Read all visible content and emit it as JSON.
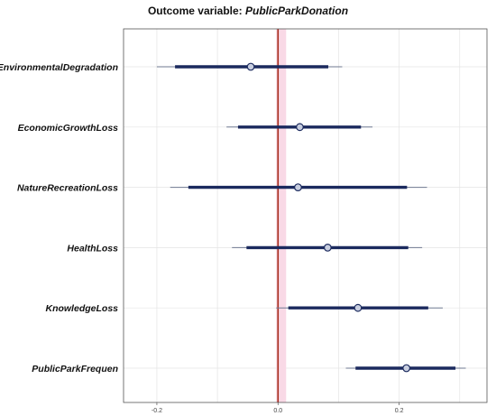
{
  "chart_data": {
    "type": "coefficient-plot",
    "title_prefix": "Outcome variable: ",
    "title_variable": "PublicParkDonation",
    "xlabel": "",
    "ylabel": "",
    "xlim": [
      -0.255,
      0.345
    ],
    "x_ticks": [
      {
        "value": -0.2,
        "label": "-0.2"
      },
      {
        "value": 0.0,
        "label": "0.0"
      },
      {
        "value": 0.2,
        "label": "0.2"
      }
    ],
    "reference_line": 0.0,
    "grid": true,
    "categories": [
      "EnvironmentalDegradation",
      "EconomicGrowthLoss",
      "NatureRecreationLoss",
      "HealthLoss",
      "KnowledgeLoss",
      "PublicParkFrequen"
    ],
    "estimates": [
      {
        "label": "EnvironmentalDegradation",
        "estimate": -0.045,
        "ci_inner": [
          -0.17,
          0.083
        ],
        "ci_outer": [
          -0.2,
          0.106
        ]
      },
      {
        "label": "EconomicGrowthLoss",
        "estimate": 0.036,
        "ci_inner": [
          -0.066,
          0.137
        ],
        "ci_outer": [
          -0.085,
          0.156
        ]
      },
      {
        "label": "NatureRecreationLoss",
        "estimate": 0.033,
        "ci_inner": [
          -0.148,
          0.213
        ],
        "ci_outer": [
          -0.178,
          0.246
        ]
      },
      {
        "label": "HealthLoss",
        "estimate": 0.082,
        "ci_inner": [
          -0.052,
          0.215
        ],
        "ci_outer": [
          -0.076,
          0.238
        ]
      },
      {
        "label": "KnowledgeLoss",
        "estimate": 0.132,
        "ci_inner": [
          0.017,
          0.248
        ],
        "ci_outer": [
          -0.003,
          0.272
        ]
      },
      {
        "label": "PublicParkFrequen",
        "estimate": 0.212,
        "ci_inner": [
          0.128,
          0.293
        ],
        "ci_outer": [
          0.112,
          0.31
        ]
      }
    ],
    "colors": {
      "interval": "#1b2a5e",
      "point_fill": "#c9cfe0",
      "point_stroke": "#1b2a5e",
      "reference_line": "#a52a1a",
      "reference_band": "#f9d9e6",
      "grid": "#e4e4e4",
      "frame": "#555555"
    }
  }
}
